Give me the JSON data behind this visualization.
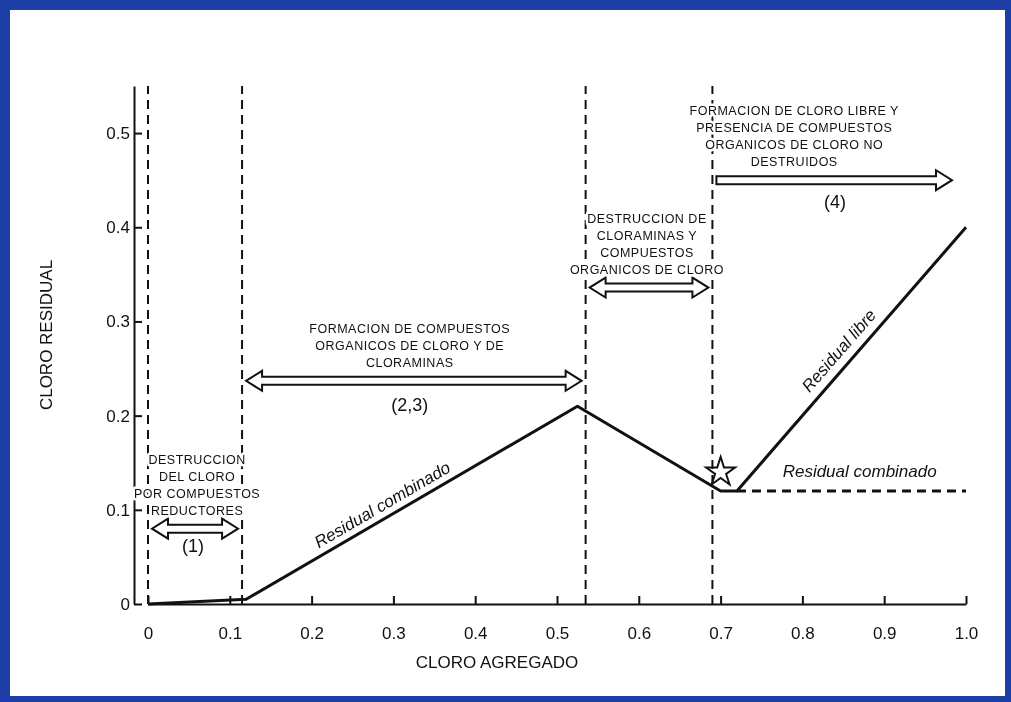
{
  "chart_data": {
    "type": "line",
    "xlabel": "CLORO AGREGADO",
    "ylabel": "CLORO RESIDUAL",
    "xlim": [
      0,
      1.0
    ],
    "ylim": [
      0,
      0.55
    ],
    "xticks": [
      0,
      0.1,
      0.2,
      0.3,
      0.4,
      0.5,
      0.6,
      0.7,
      0.8,
      0.9,
      {
        "value": 1.0,
        "label": "1.0"
      }
    ],
    "yticks": [
      0,
      0.1,
      0.2,
      0.3,
      0.4,
      0.5
    ],
    "grid": false,
    "series": [
      {
        "color": "#111111",
        "line_style": "solid",
        "marker": "none",
        "x": [
          0,
          0.12,
          0.525,
          0.7,
          0.72,
          1.0
        ],
        "values": [
          0,
          0.005,
          0.21,
          0.12,
          0.12,
          0.4
        ]
      },
      {
        "color": "#111111",
        "line_style": "dashed",
        "marker": "none",
        "x": [
          0.72,
          1.0
        ],
        "values": [
          0.12,
          0.12
        ]
      },
      {
        "type": "scatter",
        "color": "#111111",
        "marker": "star",
        "x": [
          0.7
        ],
        "values": [
          0.14
        ]
      }
    ],
    "ref_lines": [
      {
        "axis": "x",
        "value": 0,
        "line_style": "dashed"
      },
      {
        "axis": "x",
        "value": 0.115,
        "line_style": "dashed"
      },
      {
        "axis": "x",
        "value": 0.535,
        "line_style": "dashed"
      },
      {
        "axis": "x",
        "value": 0.69,
        "line_style": "dashed"
      }
    ],
    "annotations": [
      "DESTRUCCION\nDEL CLORO\nPOR COMPUESTOS\nREDUCTORES",
      "FORMACION DE COMPUESTOS\nORGANICOS DE CLORO Y DE\nCLORAMINAS",
      "DESTRUCCION DE\nCLORAMINAS Y\nCOMPUESTOS\nORGANICOS DE CLORO",
      "FORMACION DE CLORO LIBRE Y\nPRESENCIA DE COMPUESTOS\nORGANICOS DE CLORO NO\nDESTRUIDOS",
      "(1)",
      "(2,3)",
      "(4)",
      "Residual combinado",
      "Residual libre",
      "Residual combinado"
    ]
  }
}
